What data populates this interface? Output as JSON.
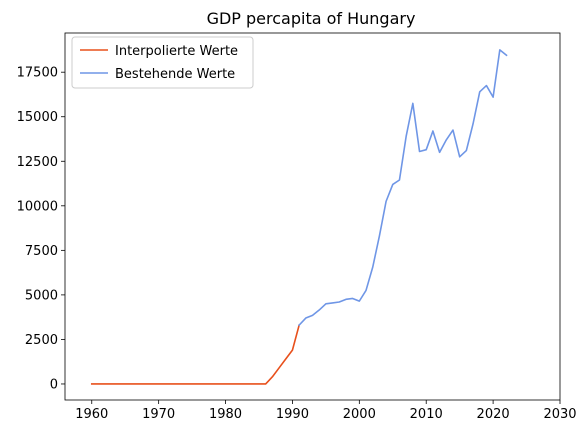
{
  "chart_data": {
    "type": "line",
    "title": "GDP percapita of Hungary",
    "xlabel": "",
    "ylabel": "",
    "xlim": [
      1956,
      2030
    ],
    "ylim": [
      -900,
      19700
    ],
    "x_ticks": [
      1960,
      1970,
      1980,
      1990,
      2000,
      2010,
      2020,
      2030
    ],
    "y_ticks": [
      0,
      2500,
      5000,
      7500,
      10000,
      12500,
      15000,
      17500
    ],
    "grid": false,
    "legend_position": "top-left",
    "series": [
      {
        "name": "Interpolierte Werte",
        "color": "#e8501c",
        "x": [
          1960,
          1961,
          1962,
          1963,
          1964,
          1965,
          1966,
          1967,
          1968,
          1969,
          1970,
          1971,
          1972,
          1973,
          1974,
          1975,
          1976,
          1977,
          1978,
          1979,
          1980,
          1981,
          1982,
          1983,
          1984,
          1985,
          1986,
          1987,
          1988,
          1989,
          1990,
          1991
        ],
        "y": [
          0,
          0,
          0,
          0,
          0,
          0,
          0,
          0,
          0,
          0,
          0,
          0,
          0,
          0,
          0,
          0,
          0,
          0,
          0,
          0,
          0,
          0,
          0,
          0,
          0,
          0,
          0,
          400,
          900,
          1400,
          1900,
          3300
        ]
      },
      {
        "name": "Bestehende Werte",
        "color": "#6f96e6",
        "x": [
          1991,
          1992,
          1993,
          1994,
          1995,
          1996,
          1997,
          1998,
          1999,
          2000,
          2001,
          2002,
          2003,
          2004,
          2005,
          2006,
          2007,
          2008,
          2009,
          2010,
          2011,
          2012,
          2013,
          2014,
          2015,
          2016,
          2017,
          2018,
          2019,
          2020,
          2021,
          2022
        ],
        "y": [
          3300,
          3700,
          3850,
          4150,
          4500,
          4550,
          4600,
          4750,
          4800,
          4650,
          5250,
          6550,
          8300,
          10250,
          11200,
          11450,
          13900,
          15750,
          13050,
          13150,
          14200,
          13000,
          13700,
          14250,
          12750,
          13100,
          14600,
          16400,
          16750,
          16100,
          18750,
          18450
        ]
      }
    ]
  }
}
